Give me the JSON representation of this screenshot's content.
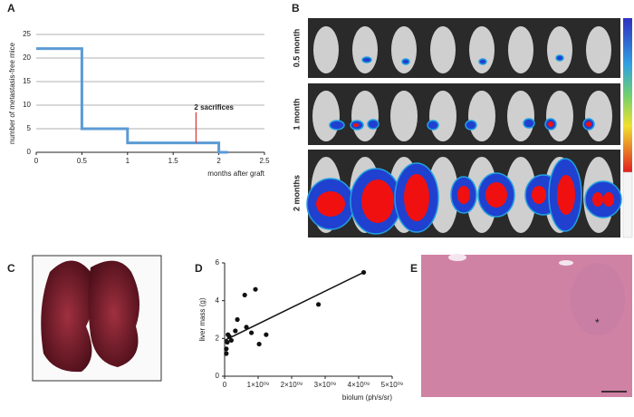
{
  "panel_labels": [
    "A",
    "B",
    "C",
    "D",
    "E"
  ],
  "imaging_rows": [
    "0.5 month",
    "1 month",
    "2 months"
  ],
  "histology_marker": "*",
  "chart_data": [
    {
      "type": "line",
      "xlabel": "months after graft",
      "ylabel": "number of metastasis-free mice",
      "x": [
        0,
        0.5,
        0.5,
        1,
        1,
        2,
        2,
        2.1
      ],
      "values": [
        22,
        22,
        5,
        5,
        2,
        2,
        0,
        0
      ],
      "color": "#5b9bd5",
      "xlim": [
        0,
        2.5
      ],
      "xticks": [
        0,
        0.5,
        1,
        1.5,
        2,
        2.5
      ],
      "ylim": [
        0,
        25
      ],
      "yticks": [
        0,
        5,
        10,
        15,
        20,
        25
      ],
      "grid": true,
      "annotations": [
        {
          "text": "2 sacrifices",
          "x": 1.75,
          "y_from": 2,
          "y_to": 8.5,
          "color": "#e03030"
        }
      ]
    },
    {
      "type": "scatter",
      "xlabel": "biolum (ph/s/sr)",
      "ylabel": "liver mass (g)",
      "x": [
        50000000,
        50000000,
        80000000,
        140000000,
        100000000,
        200000000,
        320000000,
        380000000,
        600000000,
        650000000,
        800000000,
        920000000,
        1030000000,
        1240000000,
        2800000000,
        4150000000
      ],
      "values": [
        1.2,
        1.45,
        1.8,
        2.1,
        2.2,
        1.9,
        2.4,
        3.0,
        4.3,
        2.6,
        2.3,
        4.6,
        1.7,
        2.2,
        3.8,
        5.5
      ],
      "color": "#111111",
      "fit": {
        "x": [
          0,
          4150000000
        ],
        "values": [
          1.9,
          5.5
        ]
      },
      "xlim": [
        0,
        5000000000
      ],
      "xticks": [
        0,
        {
          "value": 1000000000,
          "label": "1×10⁰⁹"
        },
        {
          "value": 2000000000,
          "label": "2×10⁰⁹"
        },
        {
          "value": 3000000000,
          "label": "3×10⁰⁹"
        },
        {
          "value": 4000000000,
          "label": "4×10⁰⁹"
        },
        {
          "value": 5000000000,
          "label": "5×10⁰⁹"
        }
      ],
      "ylim": [
        0,
        6
      ],
      "yticks": [
        0,
        2,
        4,
        6
      ],
      "grid": false
    }
  ]
}
